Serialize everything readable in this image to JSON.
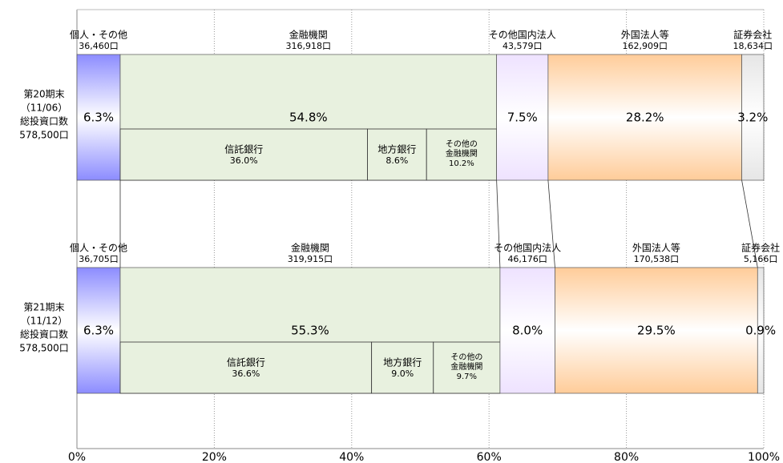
{
  "chart_data": {
    "type": "bar",
    "orientation": "horizontal",
    "stacked": true,
    "xlim": [
      0,
      100
    ],
    "xticks": [
      {
        "value": 0,
        "label": "0%"
      },
      {
        "value": 20,
        "label": "20%"
      },
      {
        "value": 40,
        "label": "40%"
      },
      {
        "value": 60,
        "label": "60%"
      },
      {
        "value": 80,
        "label": "80%"
      },
      {
        "value": 100,
        "label": "100%"
      }
    ],
    "grid": true,
    "rows": [
      {
        "label": [
          "第20期末",
          "（11/06）",
          "総投資口数",
          "578,500口"
        ],
        "segments": [
          {
            "name": "個人・その他",
            "count": "36,460口",
            "value": 6.3,
            "value_label": "6.3%",
            "color": "#8c8cff"
          },
          {
            "name": "金融機関",
            "count": "316,918口",
            "value": 54.8,
            "value_label": "54.8%",
            "color": "#e8f1df",
            "subsegments": [
              {
                "name": [
                  "信託銀行"
                ],
                "value": 36.0,
                "value_label": "36.0%"
              },
              {
                "name": [
                  "地方銀行"
                ],
                "value": 8.6,
                "value_label": "8.6%"
              },
              {
                "name": [
                  "その他の",
                  "金融機関"
                ],
                "value": 10.2,
                "value_label": "10.2%"
              }
            ]
          },
          {
            "name": "その他国内法人",
            "count": "43,579口",
            "value": 7.5,
            "value_label": "7.5%",
            "color": "#eee2ff"
          },
          {
            "name": "外国法人等",
            "count": "162,909口",
            "value": 28.2,
            "value_label": "28.2%",
            "color": "#ffcc99"
          },
          {
            "name": "証券会社",
            "count": "18,634口",
            "value": 3.2,
            "value_label": "3.2%",
            "color": "#e6e6e6"
          }
        ]
      },
      {
        "label": [
          "第21期末",
          "（11/12）",
          "総投資口数",
          "578,500口"
        ],
        "segments": [
          {
            "name": "個人・その他",
            "count": "36,705口",
            "value": 6.3,
            "value_label": "6.3%",
            "color": "#8c8cff"
          },
          {
            "name": "金融機関",
            "count": "319,915口",
            "value": 55.3,
            "value_label": "55.3%",
            "color": "#e8f1df",
            "subsegments": [
              {
                "name": [
                  "信託銀行"
                ],
                "value": 36.6,
                "value_label": "36.6%"
              },
              {
                "name": [
                  "地方銀行"
                ],
                "value": 9.0,
                "value_label": "9.0%"
              },
              {
                "name": [
                  "その他の",
                  "金融機関"
                ],
                "value": 9.7,
                "value_label": "9.7%"
              }
            ]
          },
          {
            "name": "その他国内法人",
            "count": "46,176口",
            "value": 8.0,
            "value_label": "8.0%",
            "color": "#eee2ff"
          },
          {
            "name": "外国法人等",
            "count": "170,538口",
            "value": 29.5,
            "value_label": "29.5%",
            "color": "#ffcc99"
          },
          {
            "name": "証券会社",
            "count": "5,166口",
            "value": 0.9,
            "value_label": "0.9%",
            "color": "#e6e6e6"
          }
        ]
      }
    ]
  }
}
